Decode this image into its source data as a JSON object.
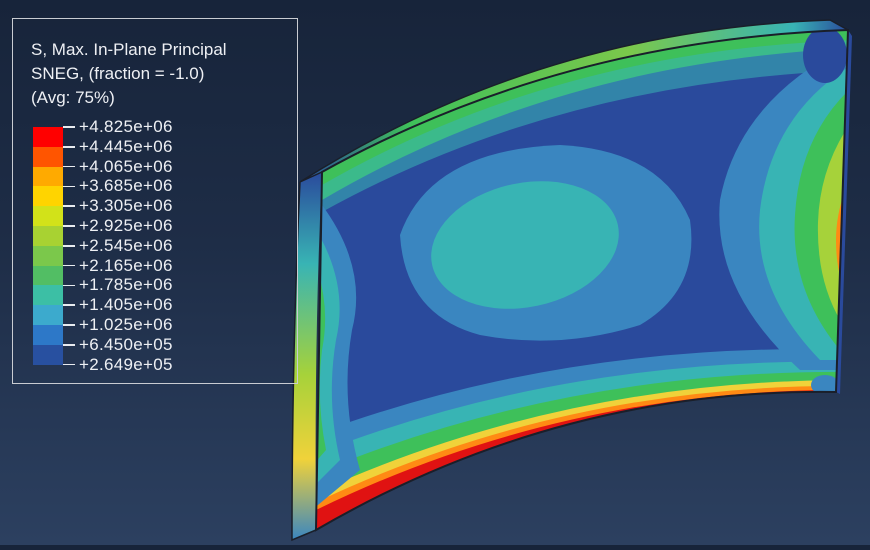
{
  "legend": {
    "title_lines": [
      "S, Max. In-Plane Principal",
      "SNEG, (fraction = -1.0)",
      "(Avg: 75%)"
    ],
    "values": [
      "+4.825e+06",
      "+4.445e+06",
      "+4.065e+06",
      "+3.685e+06",
      "+3.305e+06",
      "+2.925e+06",
      "+2.545e+06",
      "+2.165e+06",
      "+1.785e+06",
      "+1.405e+06",
      "+1.025e+06",
      "+6.450e+05",
      "+2.649e+05"
    ],
    "colors": [
      "#ff0000",
      "#ff5500",
      "#ffaa00",
      "#ffd400",
      "#d2e219",
      "#a8d232",
      "#7bc84b",
      "#52be64",
      "#3cbfa5",
      "#3caacd",
      "#2d78c8",
      "#2850a0"
    ]
  },
  "model": {
    "palette": {
      "base": "#2a4a9c",
      "light_blue": "#3a86c0",
      "cyan": "#38b4b4",
      "green": "#3ec05a",
      "yellow_green": "#a6d23a",
      "yellow": "#f0d23a",
      "orange": "#ff8a14",
      "red": "#e01212",
      "dark_edge": "#1a1f2a"
    }
  }
}
